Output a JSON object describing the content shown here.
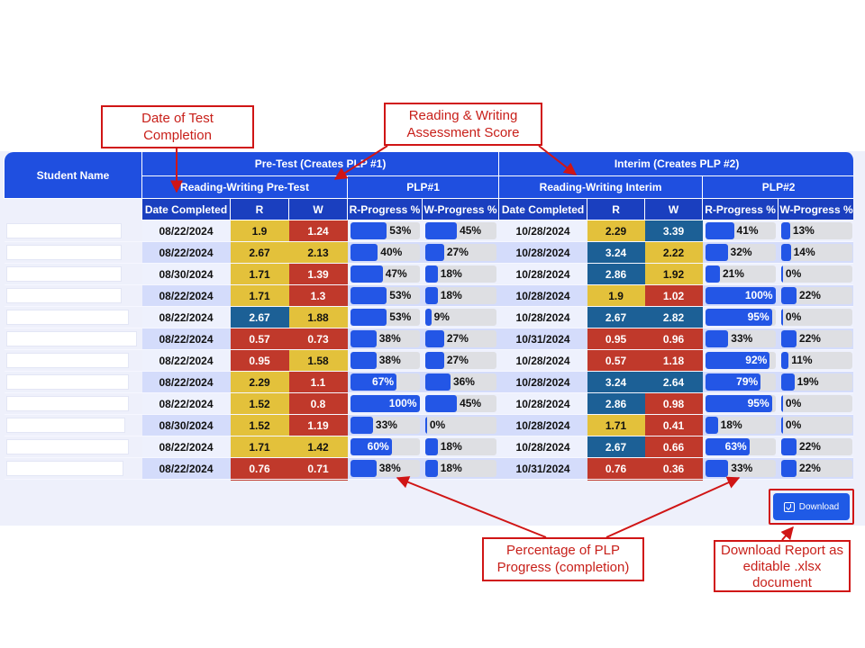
{
  "headers": {
    "student_name": "Student Name",
    "pretest": "Pre-Test (Creates PLP #1)",
    "interim": "Interim (Creates PLP #2)",
    "rw_pretest": "Reading-Writing Pre-Test",
    "plp1": "PLP#1",
    "rw_interim": "Reading-Writing Interim",
    "plp2": "PLP#2",
    "date_completed": "Date Completed",
    "r": "R",
    "w": "W",
    "r_progress": "R-Progress %",
    "w_progress": "W-Progress %"
  },
  "colors": {
    "yellow": "#e3c13b",
    "red": "#c0392b",
    "blue": "#1c6096",
    "bar": "#2356e6"
  },
  "rows": [
    {
      "pre_date": "08/22/2024",
      "pre_r": "1.9",
      "pre_r_color": "yellow",
      "pre_w": "1.24",
      "pre_w_color": "red",
      "plp1_r": 53,
      "plp1_w": 45,
      "int_date": "10/28/2024",
      "int_r": "2.29",
      "int_r_color": "yellow",
      "int_w": "3.39",
      "int_w_color": "blue",
      "plp2_r": 41,
      "plp2_w": 13
    },
    {
      "pre_date": "08/22/2024",
      "pre_r": "2.67",
      "pre_r_color": "yellow",
      "pre_w": "2.13",
      "pre_w_color": "yellow",
      "plp1_r": 40,
      "plp1_w": 27,
      "int_date": "10/28/2024",
      "int_r": "3.24",
      "int_r_color": "blue",
      "int_w": "2.22",
      "int_w_color": "yellow",
      "plp2_r": 32,
      "plp2_w": 14
    },
    {
      "pre_date": "08/30/2024",
      "pre_r": "1.71",
      "pre_r_color": "yellow",
      "pre_w": "1.39",
      "pre_w_color": "red",
      "plp1_r": 47,
      "plp1_w": 18,
      "int_date": "10/28/2024",
      "int_r": "2.86",
      "int_r_color": "blue",
      "int_w": "1.92",
      "int_w_color": "yellow",
      "plp2_r": 21,
      "plp2_w": 0
    },
    {
      "pre_date": "08/22/2024",
      "pre_r": "1.71",
      "pre_r_color": "yellow",
      "pre_w": "1.3",
      "pre_w_color": "red",
      "plp1_r": 53,
      "plp1_w": 18,
      "int_date": "10/28/2024",
      "int_r": "1.9",
      "int_r_color": "yellow",
      "int_w": "1.02",
      "int_w_color": "red",
      "plp2_r": 100,
      "plp2_w": 22
    },
    {
      "pre_date": "08/22/2024",
      "pre_r": "2.67",
      "pre_r_color": "blue",
      "pre_w": "1.88",
      "pre_w_color": "yellow",
      "plp1_r": 53,
      "plp1_w": 9,
      "int_date": "10/28/2024",
      "int_r": "2.67",
      "int_r_color": "blue",
      "int_w": "2.82",
      "int_w_color": "blue",
      "plp2_r": 95,
      "plp2_w": 0
    },
    {
      "pre_date": "08/22/2024",
      "pre_r": "0.57",
      "pre_r_color": "red",
      "pre_w": "0.73",
      "pre_w_color": "red",
      "plp1_r": 38,
      "plp1_w": 27,
      "int_date": "10/31/2024",
      "int_r": "0.95",
      "int_r_color": "red",
      "int_w": "0.96",
      "int_w_color": "red",
      "plp2_r": 33,
      "plp2_w": 22
    },
    {
      "pre_date": "08/22/2024",
      "pre_r": "0.95",
      "pre_r_color": "red",
      "pre_w": "1.58",
      "pre_w_color": "yellow",
      "plp1_r": 38,
      "plp1_w": 27,
      "int_date": "10/28/2024",
      "int_r": "0.57",
      "int_r_color": "red",
      "int_w": "1.18",
      "int_w_color": "red",
      "plp2_r": 92,
      "plp2_w": 11
    },
    {
      "pre_date": "08/22/2024",
      "pre_r": "2.29",
      "pre_r_color": "yellow",
      "pre_w": "1.1",
      "pre_w_color": "red",
      "plp1_r": 67,
      "plp1_w": 36,
      "int_date": "10/28/2024",
      "int_r": "3.24",
      "int_r_color": "blue",
      "int_w": "2.64",
      "int_w_color": "blue",
      "plp2_r": 79,
      "plp2_w": 19
    },
    {
      "pre_date": "08/22/2024",
      "pre_r": "1.52",
      "pre_r_color": "yellow",
      "pre_w": "0.8",
      "pre_w_color": "red",
      "plp1_r": 100,
      "plp1_w": 45,
      "int_date": "10/28/2024",
      "int_r": "2.86",
      "int_r_color": "blue",
      "int_w": "0.98",
      "int_w_color": "red",
      "plp2_r": 95,
      "plp2_w": 0
    },
    {
      "pre_date": "08/30/2024",
      "pre_r": "1.52",
      "pre_r_color": "yellow",
      "pre_w": "1.19",
      "pre_w_color": "red",
      "plp1_r": 33,
      "plp1_w": 0,
      "int_date": "10/28/2024",
      "int_r": "1.71",
      "int_r_color": "yellow",
      "int_w": "0.41",
      "int_w_color": "red",
      "plp2_r": 18,
      "plp2_w": 0
    },
    {
      "pre_date": "08/22/2024",
      "pre_r": "1.71",
      "pre_r_color": "yellow",
      "pre_w": "1.42",
      "pre_w_color": "yellow",
      "plp1_r": 60,
      "plp1_w": 18,
      "int_date": "10/28/2024",
      "int_r": "2.67",
      "int_r_color": "blue",
      "int_w": "0.66",
      "int_w_color": "red",
      "plp2_r": 63,
      "plp2_w": 22
    },
    {
      "pre_date": "08/22/2024",
      "pre_r": "0.76",
      "pre_r_color": "red",
      "pre_w": "0.71",
      "pre_w_color": "red",
      "plp1_r": 38,
      "plp1_w": 18,
      "int_date": "10/31/2024",
      "int_r": "0.76",
      "int_r_color": "red",
      "int_w": "0.36",
      "int_w_color": "red",
      "plp2_r": 33,
      "plp2_w": 22
    }
  ],
  "download": {
    "label": "Download"
  },
  "annotations": {
    "date": "Date of Test Completion",
    "score": "Reading & Writing Assessment Score",
    "progress": "Percentage of PLP Progress (completion)",
    "download": "Download Report as editable .xlsx document"
  }
}
